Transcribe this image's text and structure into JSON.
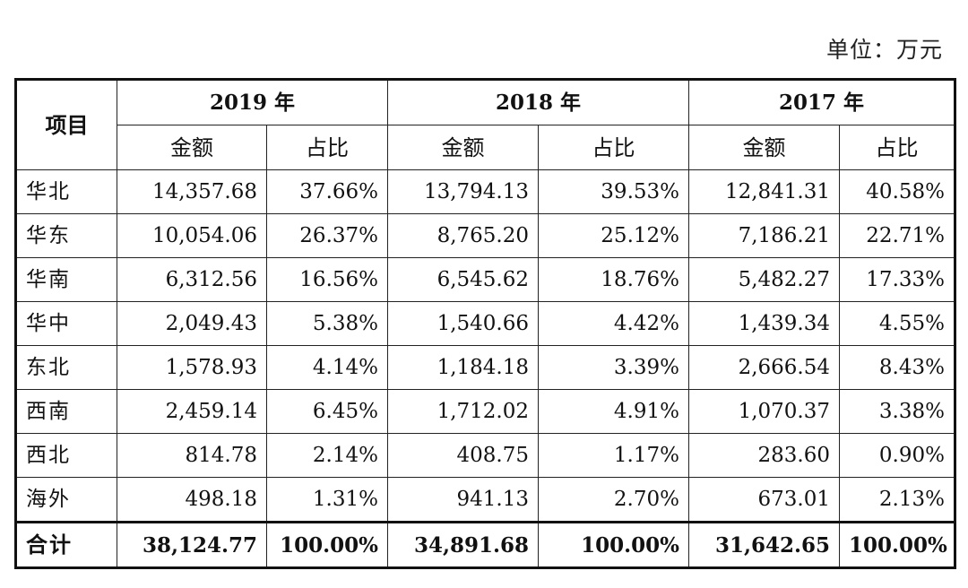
{
  "unit_label": "单位：万元",
  "header": {
    "item": "项目",
    "years": [
      "2019 年",
      "2018 年",
      "2017 年"
    ],
    "amount": "金额",
    "ratio": "占比"
  },
  "rows": [
    {
      "region": "华北",
      "values": [
        "14,357.68",
        "37.66%",
        "13,794.13",
        "39.53%",
        "12,841.31",
        "40.58%"
      ]
    },
    {
      "region": "华东",
      "values": [
        "10,054.06",
        "26.37%",
        "8,765.20",
        "25.12%",
        "7,186.21",
        "22.71%"
      ]
    },
    {
      "region": "华南",
      "values": [
        "6,312.56",
        "16.56%",
        "6,545.62",
        "18.76%",
        "5,482.27",
        "17.33%"
      ]
    },
    {
      "region": "华中",
      "values": [
        "2,049.43",
        "5.38%",
        "1,540.66",
        "4.42%",
        "1,439.34",
        "4.55%"
      ]
    },
    {
      "region": "东北",
      "values": [
        "1,578.93",
        "4.14%",
        "1,184.18",
        "3.39%",
        "2,666.54",
        "8.43%"
      ]
    },
    {
      "region": "西南",
      "values": [
        "2,459.14",
        "6.45%",
        "1,712.02",
        "4.91%",
        "1,070.37",
        "3.38%"
      ]
    },
    {
      "region": "西北",
      "values": [
        "814.78",
        "2.14%",
        "408.75",
        "1.17%",
        "283.60",
        "0.90%"
      ]
    },
    {
      "region": "海外",
      "values": [
        "498.18",
        "1.31%",
        "941.13",
        "2.70%",
        "673.01",
        "2.13%"
      ]
    }
  ],
  "total": {
    "region": "合计",
    "values": [
      "38,124.77",
      "100.00%",
      "34,891.68",
      "100.00%",
      "31,642.65",
      "100.00%"
    ]
  }
}
